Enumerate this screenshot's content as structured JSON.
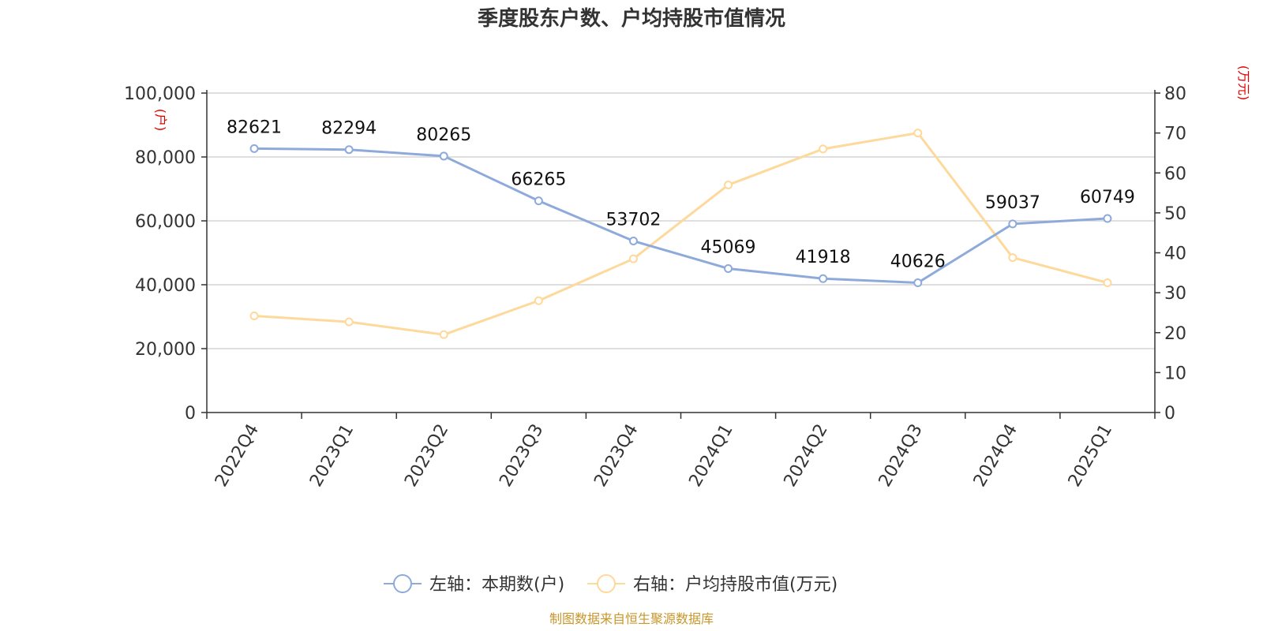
{
  "colors": {
    "left_series": "#8eaadb",
    "right_series": "#fdd99b",
    "grid": "#cccccc",
    "axis": "#333333",
    "unit_label": "#e00000",
    "source": "#c8962a"
  },
  "source_text": "制图数据来自恒生聚源数据库",
  "chart_data": {
    "type": "line",
    "title": "季度股东户数、户均持股市值情况",
    "categories": [
      "2022Q4",
      "2023Q1",
      "2023Q2",
      "2023Q3",
      "2023Q4",
      "2024Q1",
      "2024Q2",
      "2024Q3",
      "2024Q4",
      "2025Q1"
    ],
    "left_axis": {
      "unit": "(户)",
      "ylim": [
        0,
        100000
      ],
      "ticks": [
        "100,000",
        "80,000",
        "60,000",
        "40,000",
        "20,000",
        "0"
      ],
      "tick_values": [
        100000,
        80000,
        60000,
        40000,
        20000,
        0
      ]
    },
    "right_axis": {
      "unit": "(万元)",
      "ylim": [
        0,
        80
      ],
      "ticks": [
        "80",
        "70",
        "60",
        "50",
        "40",
        "30",
        "20",
        "10",
        "0"
      ],
      "tick_values": [
        80,
        70,
        60,
        50,
        40,
        30,
        20,
        10,
        0
      ]
    },
    "series": [
      {
        "name": "左轴：本期数(户)",
        "axis": "left",
        "color": "#8eaadb",
        "values": [
          82621,
          82294,
          80265,
          66265,
          53702,
          45069,
          41918,
          40626,
          59037,
          60749
        ],
        "labels": [
          "82621",
          "82294",
          "80265",
          "66265",
          "53702",
          "45069",
          "41918",
          "40626",
          "59037",
          "60749"
        ]
      },
      {
        "name": "右轴：户均持股市值(万元)",
        "axis": "right",
        "color": "#fdd99b",
        "values": [
          24.2,
          22.7,
          19.5,
          28.0,
          38.5,
          57.0,
          66.0,
          70.0,
          38.8,
          32.5
        ]
      }
    ],
    "grid": true,
    "legend_position": "bottom"
  }
}
